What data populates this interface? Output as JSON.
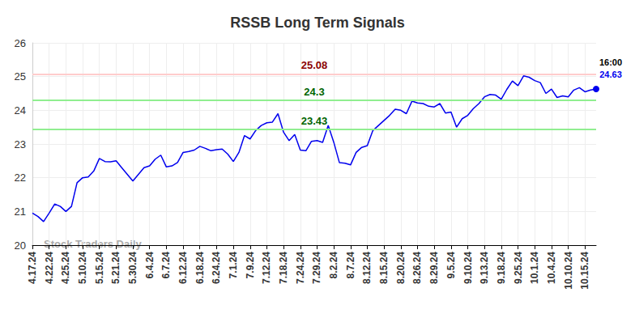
{
  "chart_data": {
    "type": "line",
    "title": "RSSB Long Term Signals",
    "watermark": "Stock Traders Daily",
    "last_point_label": "16:00",
    "categories": [
      "4.17.24",
      null,
      null,
      "4.22.24",
      null,
      null,
      "4.25.24",
      null,
      null,
      "5.10.24",
      null,
      null,
      "5.15.24",
      null,
      null,
      "5.21.24",
      null,
      null,
      "5.30.24",
      null,
      null,
      "6.4.24",
      null,
      null,
      "6.7.24",
      null,
      null,
      "6.12.24",
      null,
      null,
      "6.18.24",
      null,
      null,
      "6.24.24",
      null,
      null,
      "7.1.24",
      null,
      null,
      "7.9.24",
      null,
      null,
      "7.12.24",
      null,
      null,
      "7.18.24",
      null,
      null,
      "7.24.24",
      null,
      null,
      "7.29.24",
      null,
      null,
      "8.2.24",
      null,
      null,
      "8.7.24",
      null,
      null,
      "8.12.24",
      null,
      null,
      "8.15.24",
      null,
      null,
      "8.20.24",
      null,
      null,
      "8.26.24",
      null,
      null,
      "8.29.24",
      null,
      null,
      "9.5.24",
      null,
      null,
      "9.10.24",
      null,
      null,
      "9.13.24",
      null,
      null,
      "9.18.24",
      null,
      null,
      "9.25.24",
      null,
      null,
      "10.1.24",
      null,
      null,
      "10.4.24",
      null,
      null,
      "10.10.24",
      null,
      null,
      "10.15.24",
      null,
      null
    ],
    "values": [
      20.95,
      20.85,
      20.7,
      20.95,
      21.22,
      21.15,
      21.0,
      21.15,
      21.85,
      22.0,
      22.02,
      22.2,
      22.57,
      22.48,
      22.47,
      22.5,
      22.3,
      22.1,
      21.9,
      22.1,
      22.3,
      22.35,
      22.55,
      22.67,
      22.32,
      22.35,
      22.45,
      22.75,
      22.78,
      22.82,
      22.93,
      22.87,
      22.8,
      22.83,
      22.85,
      22.7,
      22.48,
      22.75,
      23.25,
      23.15,
      23.4,
      23.55,
      23.63,
      23.65,
      23.9,
      23.35,
      23.1,
      23.28,
      22.82,
      22.8,
      23.08,
      23.1,
      23.05,
      23.55,
      23.05,
      22.45,
      22.43,
      22.38,
      22.75,
      22.9,
      22.95,
      23.4,
      23.55,
      23.7,
      23.85,
      24.03,
      24.0,
      23.9,
      24.27,
      24.22,
      24.2,
      24.12,
      24.1,
      24.2,
      23.92,
      23.95,
      23.5,
      23.75,
      23.85,
      24.05,
      24.2,
      24.4,
      24.47,
      24.45,
      24.33,
      24.62,
      24.87,
      24.73,
      25.02,
      24.98,
      24.88,
      24.82,
      24.5,
      24.63,
      24.38,
      24.43,
      24.4,
      24.6,
      24.67,
      24.55,
      24.6,
      24.63
    ],
    "color": "#0000ee",
    "levels": [
      {
        "value": 25.08,
        "color": "#ffcccc",
        "label_color": "#8b0000"
      },
      {
        "value": 24.3,
        "color": "#90ee90",
        "label_color": "#006400"
      },
      {
        "value": 23.43,
        "color": "#90ee90",
        "label_color": "#006400"
      }
    ],
    "ylim": [
      20,
      26
    ],
    "yticks": [
      20,
      21,
      22,
      23,
      24,
      25,
      26
    ],
    "grid": true
  }
}
